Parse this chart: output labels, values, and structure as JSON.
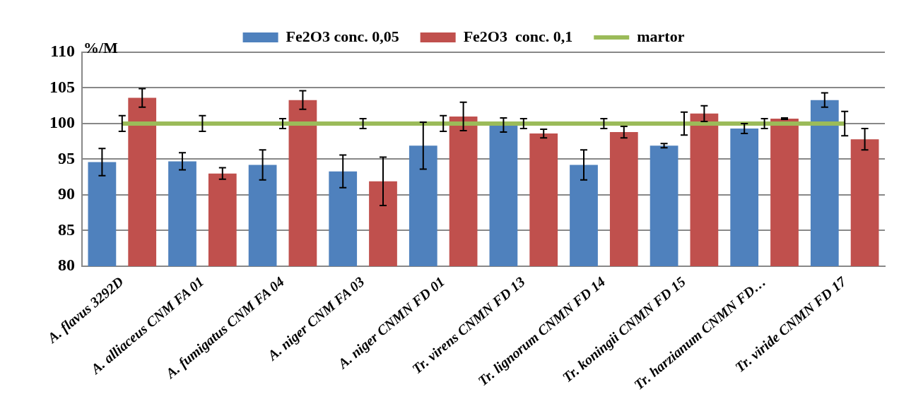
{
  "chart_data": {
    "type": "bar",
    "ylabel": "%/M",
    "categories": [
      "A. flavus 3292D",
      "A. alliaceus CNM FA 01",
      "A. fumigatus CNM FA 04",
      "A. niger CNM FA 03",
      "A. niger CNMN FD 01",
      "Tr. virens CNMN FD 13",
      "Tr. lignorum CNMN FD 14",
      "Tr. koningii CNMN FD 15",
      "Tr. harzianum CNMN FD…",
      "Tr. viride CNMN FD 17"
    ],
    "series": [
      {
        "name": "Fe2O3 conc. 0,05",
        "color": "#4f81bd",
        "values": [
          94.6,
          94.7,
          94.2,
          93.3,
          96.9,
          99.8,
          94.2,
          96.9,
          99.3,
          103.3
        ],
        "errors": [
          1.9,
          1.2,
          2.1,
          2.3,
          3.3,
          1.0,
          2.1,
          0.3,
          0.7,
          1.0
        ]
      },
      {
        "name": "Fe2O3  conc. 0,1",
        "color": "#c0504d",
        "values": [
          103.6,
          93.0,
          103.3,
          91.9,
          101.0,
          98.6,
          98.8,
          101.4,
          100.7,
          97.8
        ],
        "errors": [
          1.3,
          0.8,
          1.3,
          3.4,
          2.0,
          0.6,
          0.8,
          1.1,
          0.1,
          1.5
        ]
      },
      {
        "name": "martor",
        "type": "line",
        "color": "#9bbb59",
        "values": [
          100,
          100,
          100,
          100,
          100,
          100,
          100,
          100,
          100,
          100
        ],
        "errors": [
          1.1,
          1.1,
          0.7,
          0.7,
          1.1,
          0.7,
          0.7,
          1.6,
          0.7,
          1.7
        ]
      }
    ],
    "ylim": [
      80,
      110
    ],
    "yticks": [
      80,
      85,
      90,
      95,
      100,
      105,
      110
    ],
    "grid": "y",
    "legend": "top"
  }
}
